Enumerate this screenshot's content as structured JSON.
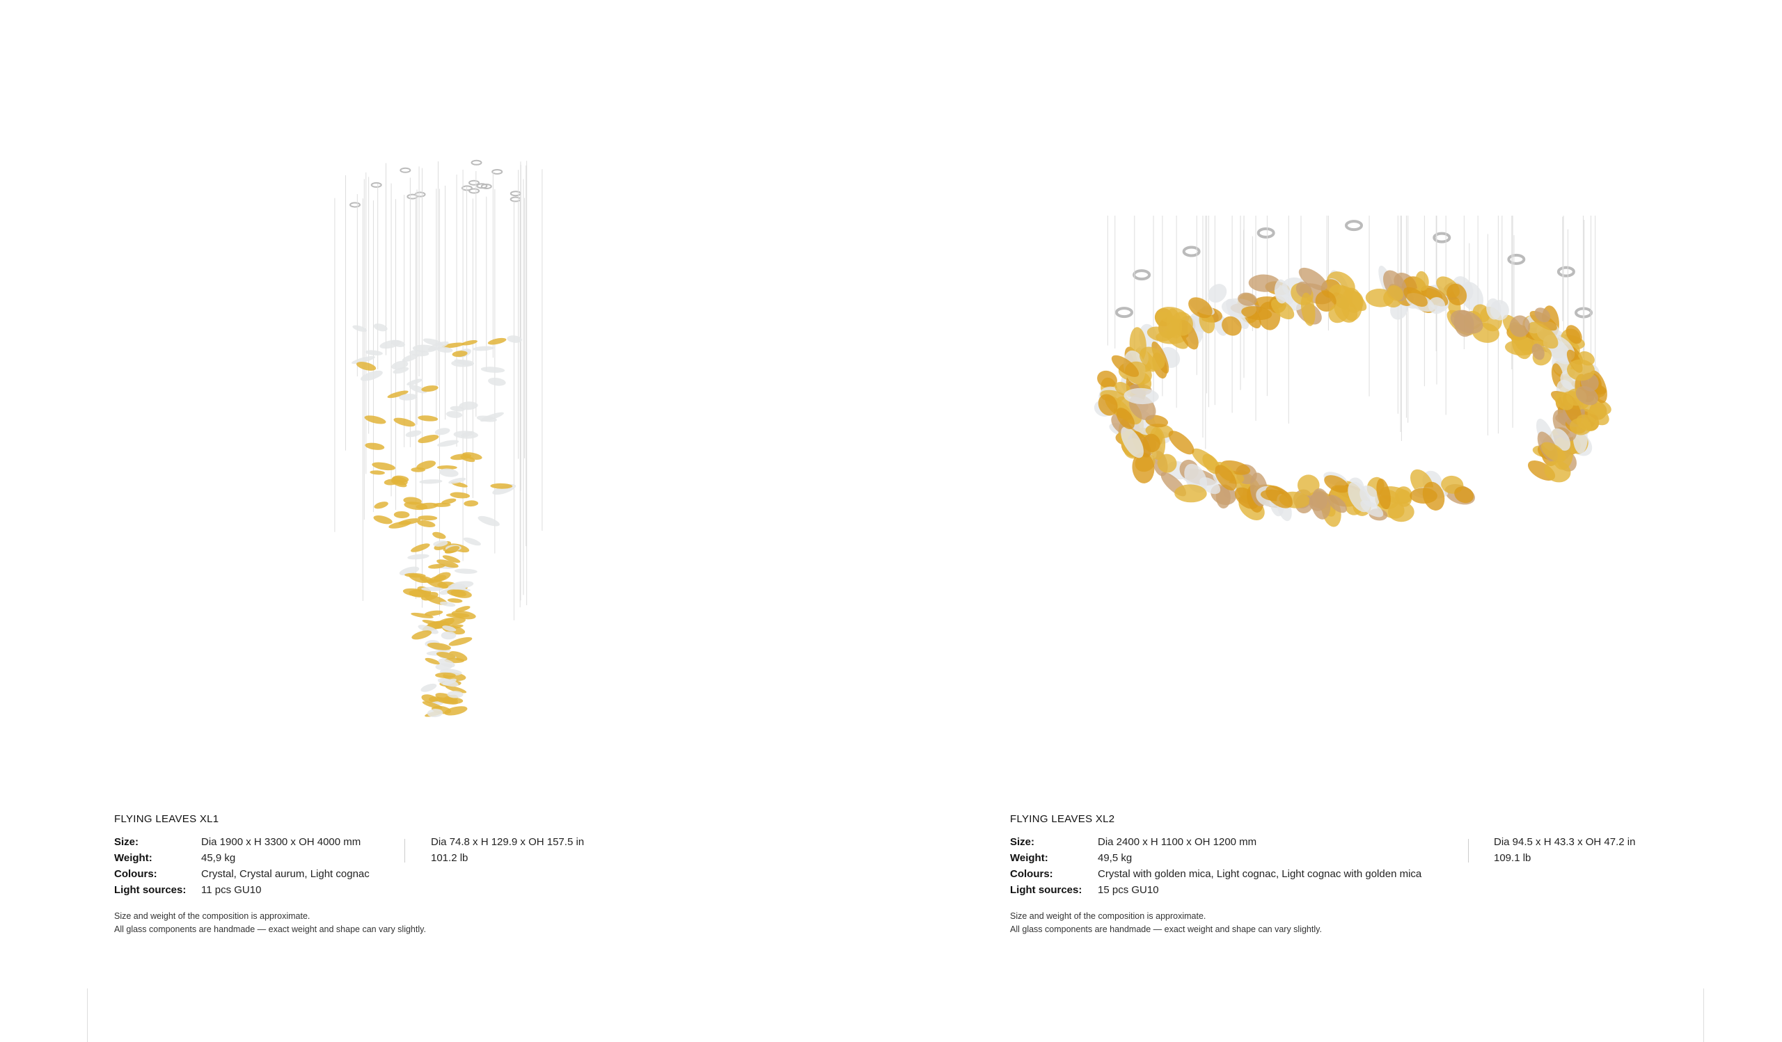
{
  "products": [
    {
      "title": "FLYING LEAVES XL1",
      "specs": {
        "size_label": "Size:",
        "size_metric": "Dia 1900 x H 3300 x OH 4000 mm",
        "size_imperial": "Dia 74.8 x H 129.9 x OH 157.5 in",
        "weight_label": "Weight:",
        "weight_metric": "45,9 kg",
        "weight_imperial": "101.2 lb",
        "colours_label": "Colours:",
        "colours": "Crystal, Crystal aurum, Light cognac",
        "light_label": "Light sources:",
        "light": "11 pcs GU10"
      },
      "notes": [
        "Size and weight of the composition is approximate.",
        "All glass components are handmade — exact weight and shape can vary slightly."
      ]
    },
    {
      "title": "FLYING LEAVES XL2",
      "specs": {
        "size_label": "Size:",
        "size_metric": "Dia 2400 x H 1100 x OH 1200 mm",
        "size_imperial": "Dia 94.5 x H 43.3 x OH 47.2 in",
        "weight_label": "Weight:",
        "weight_metric": "49,5 kg",
        "weight_imperial": "109.1 lb",
        "colours_label": "Colours:",
        "colours": "Crystal with golden mica, Light cognac, Light cognac with golden mica",
        "light_label": "Light sources:",
        "light": "15 pcs GU10"
      },
      "notes": [
        "Size and weight of the composition is approximate.",
        "All glass components are handmade — exact weight and shape can vary slightly."
      ]
    }
  ],
  "colors": {
    "gold": "#e2b43a",
    "amber": "#d99a1c",
    "crystal": "#e4e6e8",
    "cognac": "#c9a070"
  }
}
